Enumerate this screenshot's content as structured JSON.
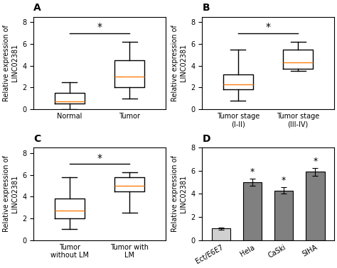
{
  "chart_data": [
    {
      "type": "box",
      "title": "A",
      "ylabel": "Relative expression of  LINC02381",
      "categories": [
        "Normal",
        "Tumor"
      ],
      "boxes": [
        {
          "median": 0.7,
          "q1": 0.5,
          "q3": 1.5,
          "whislo": 0.0,
          "whishi": 2.5
        },
        {
          "median": 3.0,
          "q1": 2.0,
          "q3": 4.5,
          "whislo": 1.0,
          "whishi": 6.2
        }
      ],
      "ylim": [
        0,
        8.5
      ],
      "yticks": [
        0,
        2,
        4,
        6,
        8
      ],
      "annotations": [
        {
          "text": "*",
          "y": 7.0
        }
      ]
    },
    {
      "type": "box",
      "title": "B",
      "ylabel": "Relative expression of  LINC02381",
      "categories": [
        "Tumor stage (I-II)",
        "Tumor stage (III-IV)"
      ],
      "boxes": [
        {
          "median": 2.3,
          "q1": 1.8,
          "q3": 3.2,
          "whislo": 0.8,
          "whishi": 5.5
        },
        {
          "median": 4.3,
          "q1": 3.7,
          "q3": 5.5,
          "whislo": 3.5,
          "whishi": 6.2
        }
      ],
      "ylim": [
        0,
        8.5
      ],
      "yticks": [
        0,
        2,
        4,
        6,
        8
      ],
      "annotations": [
        {
          "text": "*",
          "y": 7.0
        }
      ]
    },
    {
      "type": "box",
      "title": "C",
      "ylabel": "Relative expression of  LINC02381",
      "categories": [
        "Tumor without LM",
        "Tumor with LM"
      ],
      "boxes": [
        {
          "median": 2.7,
          "q1": 2.0,
          "q3": 3.8,
          "whislo": 1.0,
          "whishi": 5.8
        },
        {
          "median": 5.0,
          "q1": 4.5,
          "q3": 5.8,
          "whislo": 2.5,
          "whishi": 6.2
        }
      ],
      "ylim": [
        0,
        8.5
      ],
      "yticks": [
        0,
        2,
        4,
        6,
        8
      ],
      "annotations": [
        {
          "text": "*",
          "y": 7.0
        }
      ]
    },
    {
      "type": "bar",
      "title": "D",
      "ylabel": "Relative expression of  LINC02381",
      "categories": [
        "Ect/E6E7",
        "Hela",
        "CaSki",
        "SIHA"
      ],
      "values": [
        1.0,
        5.0,
        4.3,
        5.9
      ],
      "errors": [
        0.1,
        0.3,
        0.3,
        0.35
      ],
      "colors": [
        "#d0d0d0",
        "#808080",
        "#808080",
        "#808080"
      ],
      "ylim": [
        0,
        8
      ],
      "yticks": [
        0,
        2,
        4,
        6,
        8
      ],
      "annotations": [
        {
          "text": "*",
          "category": "Hela"
        },
        {
          "text": "*",
          "category": "CaSki"
        },
        {
          "text": "*",
          "category": "SIHA"
        }
      ]
    }
  ]
}
